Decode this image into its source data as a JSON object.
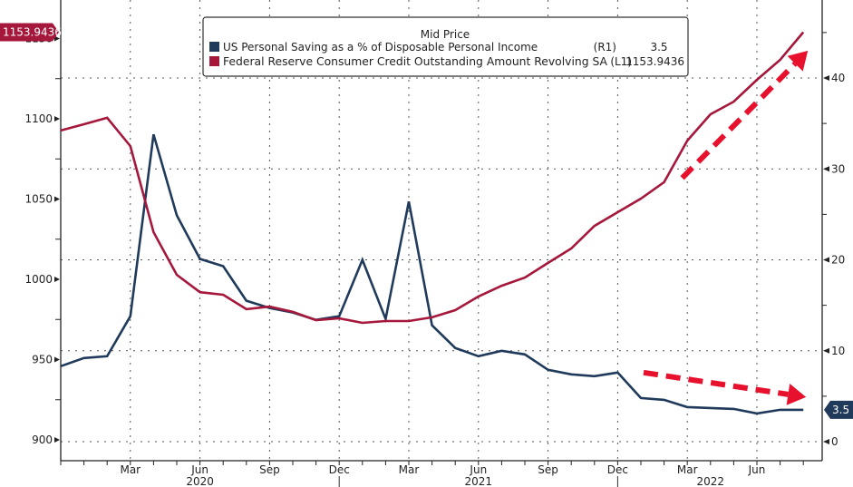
{
  "chart_data": {
    "type": "line",
    "title": "",
    "legend": {
      "title": "Mid Price",
      "placement": "top-center",
      "entries": [
        {
          "name": "US Personal Saving as a % of Disposable Personal Income",
          "axis_tag": "(R1)",
          "last_value": "3.5",
          "color": "#1f3a5a"
        },
        {
          "name": "Federal Reserve Consumer Credit Outstanding Amount Revolving SA",
          "axis_tag": "(L1)",
          "last_value": "1153.9436",
          "color": "#a6173c"
        }
      ]
    },
    "x": [
      "2019-12",
      "2020-01",
      "2020-02",
      "2020-03",
      "2020-04",
      "2020-05",
      "2020-06",
      "2020-07",
      "2020-08",
      "2020-09",
      "2020-10",
      "2020-11",
      "2020-12",
      "2021-01",
      "2021-02",
      "2021-03",
      "2021-04",
      "2021-05",
      "2021-06",
      "2021-07",
      "2021-08",
      "2021-09",
      "2021-10",
      "2021-11",
      "2021-12",
      "2022-01",
      "2022-02",
      "2022-03",
      "2022-04",
      "2022-05",
      "2022-06",
      "2022-07",
      "2022-08"
    ],
    "x_tick_labels": [
      {
        "month": "2020-03",
        "label": "Mar"
      },
      {
        "month": "2020-06",
        "label": "Jun"
      },
      {
        "month": "2020-09",
        "label": "Sep"
      },
      {
        "month": "2020-12",
        "label": "Dec"
      },
      {
        "month": "2021-03",
        "label": "Mar"
      },
      {
        "month": "2021-06",
        "label": "Jun"
      },
      {
        "month": "2021-09",
        "label": "Sep"
      },
      {
        "month": "2021-12",
        "label": "Dec"
      },
      {
        "month": "2022-03",
        "label": "Mar"
      },
      {
        "month": "2022-06",
        "label": "Jun"
      }
    ],
    "year_labels": [
      {
        "month": "2020-06",
        "label": "2020"
      },
      {
        "month": "2021-06",
        "label": "2021"
      },
      {
        "month": "2022-04",
        "label": "2022"
      }
    ],
    "year_dividers": [
      "2020-12",
      "2021-12"
    ],
    "series": [
      {
        "name": "US Personal Saving as a % of Disposable Personal Income",
        "axis": "right",
        "color": "#1f3a5a",
        "values": [
          8.3,
          9.2,
          9.4,
          13.8,
          33.8,
          24.9,
          20.1,
          19.3,
          15.5,
          14.7,
          14.2,
          13.4,
          13.8,
          20.0,
          13.5,
          26.4,
          12.8,
          10.3,
          9.4,
          10.0,
          9.6,
          7.9,
          7.4,
          7.2,
          7.6,
          4.8,
          4.6,
          3.8,
          3.7,
          3.6,
          3.1,
          3.5,
          3.5
        ]
      },
      {
        "name": "Federal Reserve Consumer Credit Outstanding Amount Revolving SA",
        "axis": "left",
        "color": "#a6173c",
        "values": [
          1092.7,
          1096.6,
          1100.6,
          1083.0,
          1029.4,
          1002.8,
          992.0,
          990.4,
          981.4,
          983.0,
          979.7,
          974.6,
          975.7,
          972.9,
          974.0,
          974.0,
          976.3,
          980.8,
          989.3,
          996.0,
          1001.1,
          1010.2,
          1019.2,
          1033.3,
          1041.8,
          1050.3,
          1060.5,
          1086.4,
          1102.8,
          1110.7,
          1124.3,
          1136.7,
          1153.9436
        ]
      }
    ],
    "left_axis": {
      "ylim": [
        897,
        1175
      ],
      "ticks": [
        900,
        950,
        1000,
        1050,
        1100,
        1150
      ],
      "tick_labels": [
        "900",
        "950",
        "1000",
        "1050",
        "1100",
        "1150"
      ]
    },
    "right_axis": {
      "ylim": [
        -0.3,
        48
      ],
      "ticks": [
        0,
        10,
        20,
        30,
        40
      ],
      "tick_labels": [
        "0",
        "10",
        "20",
        "30",
        "40"
      ]
    },
    "grid": true,
    "last_value_tags": [
      {
        "axis": "left",
        "text": "1153.9436",
        "value": 1153.9436,
        "color": "#a6173c"
      },
      {
        "axis": "right",
        "text": "3.5",
        "value": 3.5,
        "color": "#1f3a5a"
      }
    ],
    "annotations": [
      {
        "type": "dashed-arrow",
        "color": "#e8112d",
        "direction": "up",
        "from": {
          "month": "2022-02",
          "right_value": 29
        },
        "to": {
          "month": "2022-08",
          "right_value": 43
        }
      },
      {
        "type": "dashed-arrow",
        "color": "#e8112d",
        "direction": "down",
        "from": {
          "month": "2022-01",
          "right_value": 7.6
        },
        "to": {
          "month": "2022-08",
          "right_value": 4.9
        }
      }
    ]
  }
}
